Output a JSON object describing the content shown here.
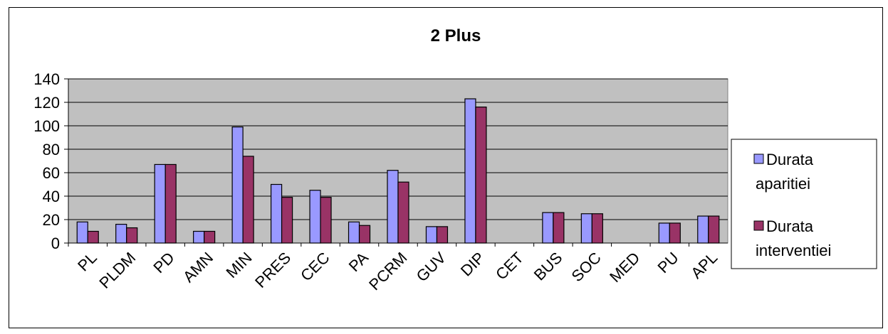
{
  "chart_data": {
    "type": "bar",
    "title": "2 Plus",
    "categories": [
      "PL",
      "PLDM",
      "PD",
      "AMN",
      "MIN",
      "PRES",
      "CEC",
      "PA",
      "PCRM",
      "GUV",
      "DIP",
      "CET",
      "BUS",
      "SOC",
      "MED",
      "PU",
      "APL"
    ],
    "series": [
      {
        "name": "Durata aparitiei",
        "legend_lines": [
          "Durata",
          "aparitiei"
        ],
        "color": "#9999ff",
        "values": [
          18,
          16,
          67,
          10,
          99,
          50,
          45,
          18,
          62,
          14,
          123,
          0,
          26,
          25,
          0,
          17,
          23
        ]
      },
      {
        "name": "Durata interventiei",
        "legend_lines": [
          "Durata",
          "interventiei"
        ],
        "color": "#993366",
        "values": [
          10,
          13,
          67,
          10,
          74,
          39,
          39,
          15,
          52,
          14,
          116,
          0,
          26,
          25,
          0,
          17,
          23
        ]
      }
    ],
    "yticks": [
      "0",
      "20",
      "40",
      "60",
      "80",
      "100",
      "120",
      "140"
    ],
    "ylim": [
      0,
      140
    ],
    "grid": true,
    "plot_background": "#c0c0c0",
    "legend_position": "right"
  }
}
